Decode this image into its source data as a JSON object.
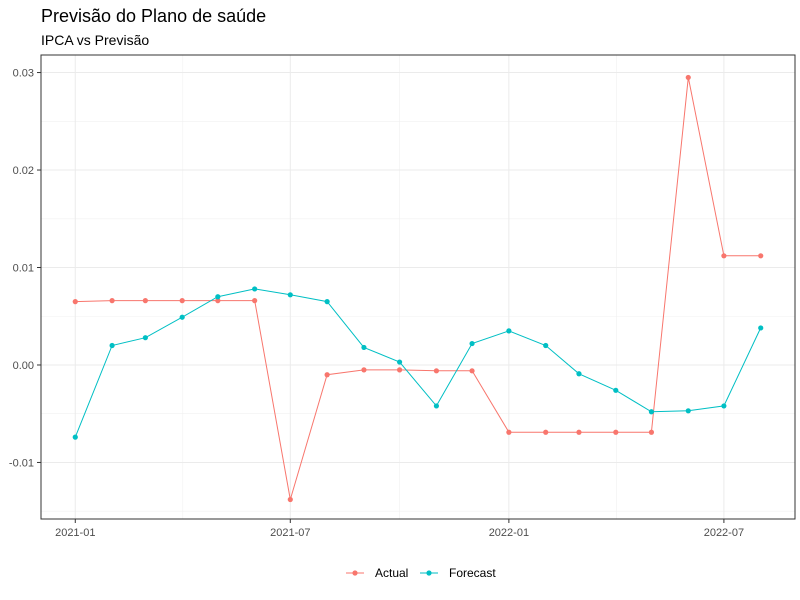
{
  "chart_data": {
    "type": "line",
    "title": "Previsão do Plano de saúde",
    "subtitle": "IPCA vs Previsão",
    "xlabel": "",
    "ylabel": "",
    "x": [
      "2021-01",
      "2021-02",
      "2021-03",
      "2021-04",
      "2021-05",
      "2021-06",
      "2021-07",
      "2021-08",
      "2021-09",
      "2021-10",
      "2021-11",
      "2021-12",
      "2022-01",
      "2022-02",
      "2022-03",
      "2022-04",
      "2022-05",
      "2022-06",
      "2022-07",
      "2022-08"
    ],
    "x_ticks": [
      "2021-01",
      "2021-07",
      "2022-01",
      "2022-07"
    ],
    "y_ticks": [
      -0.01,
      0.0,
      0.01,
      0.02,
      0.03
    ],
    "y_tick_labels": [
      "-0.01",
      "0.00",
      "0.01",
      "0.02",
      "0.03"
    ],
    "ylim": [
      -0.0158,
      0.0318
    ],
    "grid": true,
    "legend_position": "bottom",
    "series": [
      {
        "name": "Actual",
        "color": "#F8766D",
        "values": [
          0.0065,
          0.0066,
          0.0066,
          0.0066,
          0.0066,
          0.0066,
          -0.0138,
          -0.001,
          -0.0005,
          -0.0005,
          -0.0006,
          -0.0006,
          -0.0069,
          -0.0069,
          -0.0069,
          -0.0069,
          -0.0069,
          0.0295,
          0.0112,
          0.0112
        ]
      },
      {
        "name": "Forecast",
        "color": "#00BFC4",
        "values": [
          -0.0074,
          0.002,
          0.0028,
          0.0049,
          0.007,
          0.0078,
          0.0072,
          0.0065,
          0.0018,
          0.0003,
          -0.0042,
          0.0022,
          0.0035,
          0.002,
          -0.0009,
          -0.0026,
          -0.0048,
          -0.0047,
          -0.0042,
          0.0038
        ]
      }
    ]
  }
}
